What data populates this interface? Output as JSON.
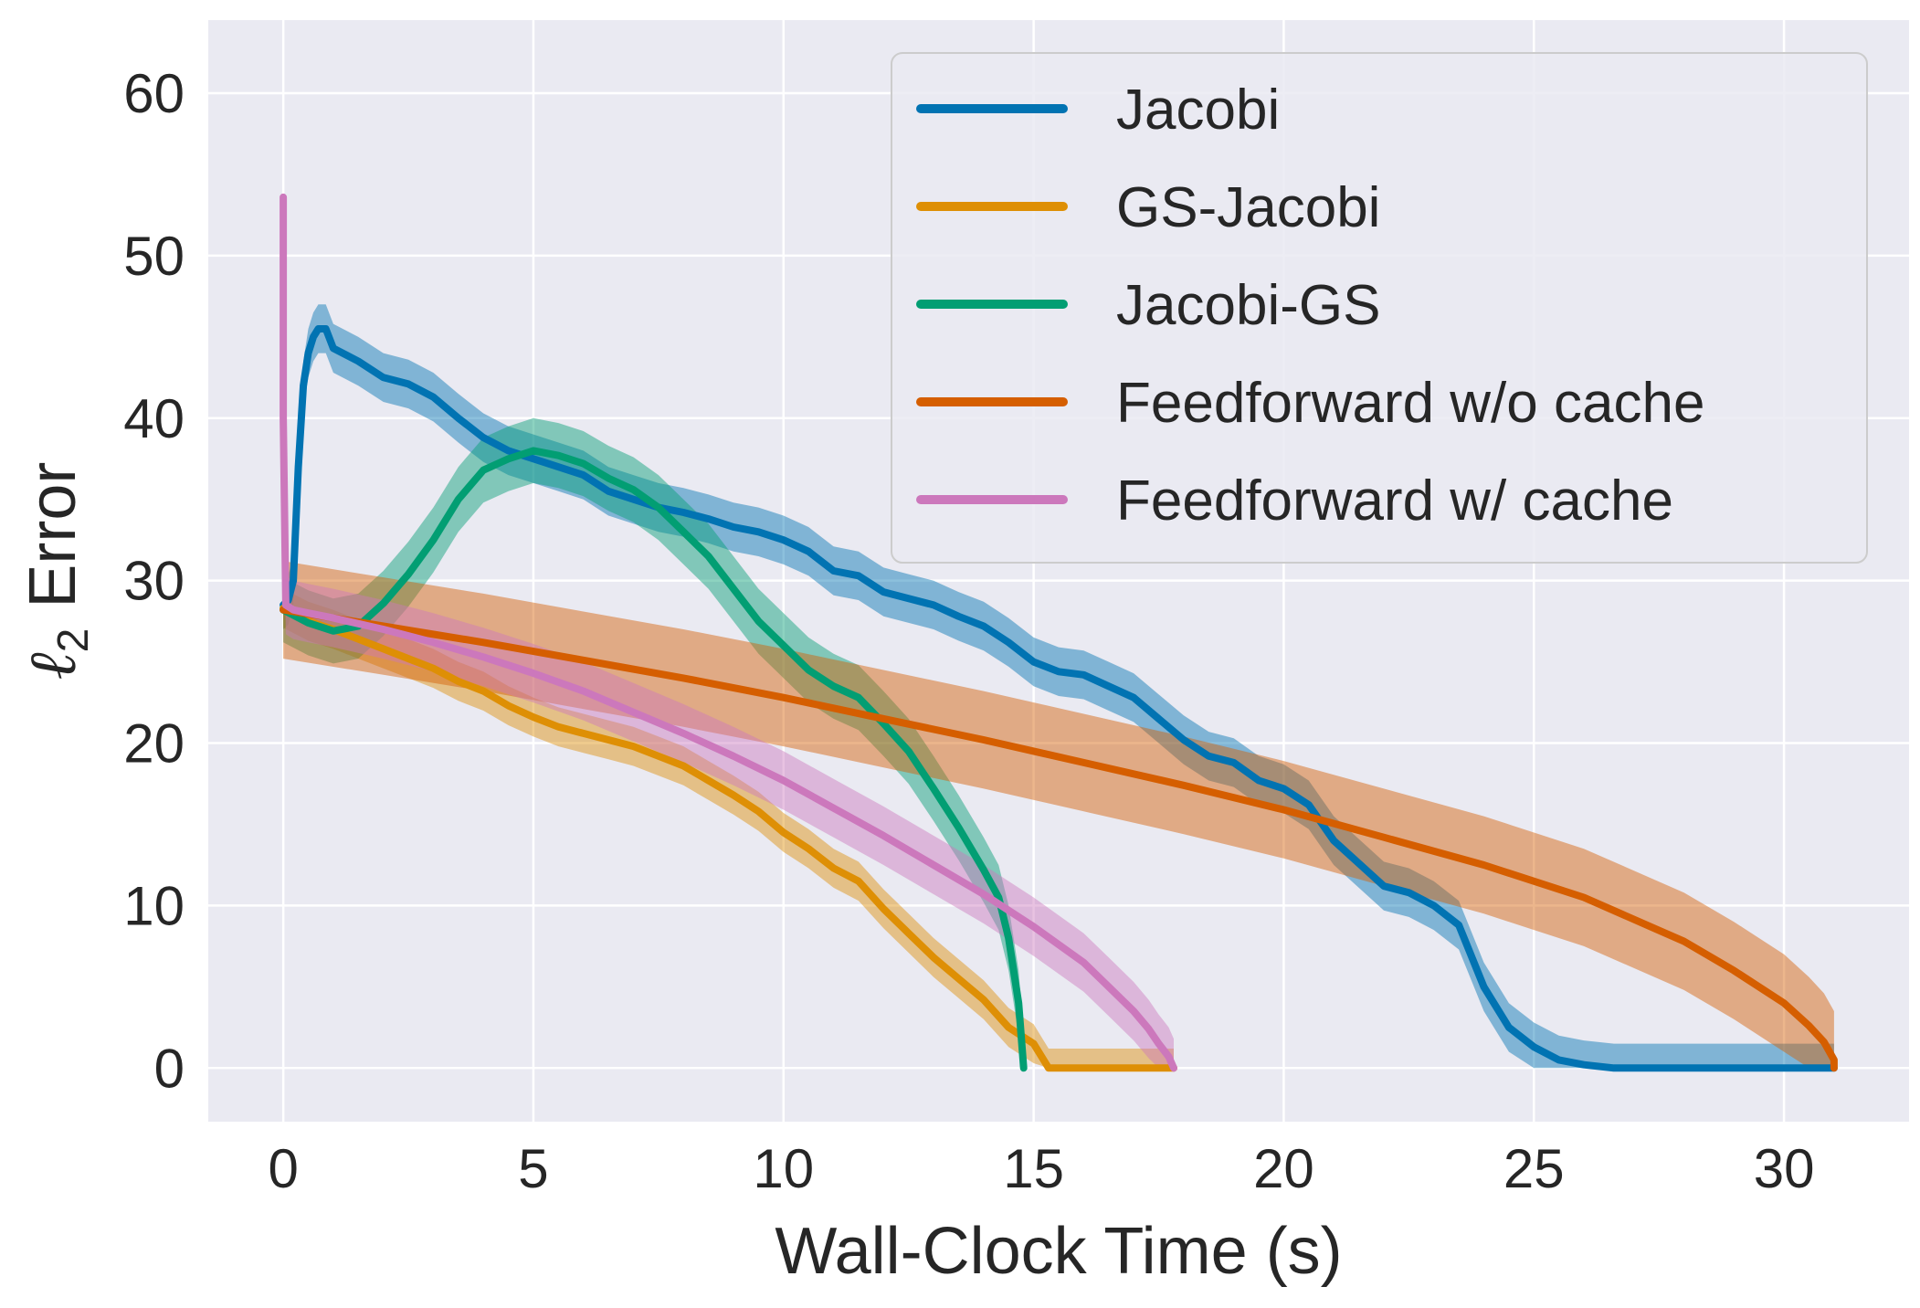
{
  "chart_data": {
    "type": "line",
    "title": "",
    "xlabel": "Wall-Clock Time (s)",
    "ylabel_symbol": "ℓ",
    "ylabel_subscript": "2",
    "ylabel_rest": "Error",
    "xlim": [
      -1.5,
      32.5
    ],
    "ylim": [
      -3.3,
      64.5
    ],
    "xticks": [
      0,
      5,
      10,
      15,
      20,
      25,
      30
    ],
    "yticks": [
      0,
      10,
      20,
      30,
      40,
      50,
      60
    ],
    "grid": true,
    "legend_position": "top-right",
    "series": [
      {
        "name": "Jacobi",
        "color": "#0173b2",
        "band": 1.5,
        "x": [
          0,
          0.1,
          0.2,
          0.3,
          0.4,
          0.5,
          0.6,
          0.7,
          0.85,
          1.0,
          1.5,
          2,
          2.5,
          3,
          3.5,
          4,
          4.5,
          5,
          5.5,
          6,
          6.5,
          7,
          7.5,
          8,
          8.5,
          9,
          9.5,
          10,
          10.5,
          11,
          11.5,
          12,
          12.5,
          13,
          13.5,
          14,
          14.5,
          15,
          15.5,
          16,
          16.5,
          17,
          17.5,
          18,
          18.5,
          19,
          19.5,
          20,
          20.5,
          21,
          21.5,
          22,
          22.5,
          23,
          23.5,
          24,
          24.5,
          25,
          25.5,
          26,
          26.6,
          27,
          28,
          29,
          30,
          31
        ],
        "y": [
          28.5,
          28.8,
          30,
          37,
          42,
          44,
          45,
          45.5,
          45.5,
          44.3,
          43.5,
          42.5,
          42.1,
          41.3,
          40,
          38.8,
          38,
          37.5,
          37,
          36.5,
          35.5,
          35,
          34.5,
          34.2,
          33.8,
          33.3,
          33,
          32.5,
          31.8,
          30.6,
          30.3,
          29.3,
          28.9,
          28.5,
          27.8,
          27.2,
          26.2,
          25,
          24.4,
          24.2,
          23.5,
          22.8,
          21.5,
          20.2,
          19.2,
          18.8,
          17.7,
          17.2,
          16.2,
          14,
          12.6,
          11.2,
          10.8,
          10,
          8.8,
          5,
          2.5,
          1.3,
          0.5,
          0.2,
          0,
          0,
          0,
          0,
          0,
          0
        ]
      },
      {
        "name": "GS-Jacobi",
        "color": "#de8f05",
        "band": 1.2,
        "x": [
          0,
          0.5,
          1,
          1.5,
          2,
          2.5,
          3,
          3.5,
          4,
          4.5,
          5,
          5.5,
          6,
          6.5,
          7,
          7.5,
          8,
          8.5,
          9,
          9.5,
          10,
          10.5,
          11,
          11.5,
          12,
          12.5,
          13,
          13.5,
          14,
          14.5,
          15,
          15.3,
          16,
          17,
          17.8
        ],
        "y": [
          28.3,
          27.5,
          27,
          26.4,
          25.8,
          25.2,
          24.6,
          23.8,
          23.2,
          22.3,
          21.6,
          21,
          20.6,
          20.2,
          19.8,
          19.2,
          18.6,
          17.7,
          16.8,
          15.8,
          14.5,
          13.5,
          12.3,
          11.5,
          9.8,
          8.3,
          6.8,
          5.5,
          4.2,
          2.5,
          1.5,
          0,
          0,
          0,
          0
        ]
      },
      {
        "name": "Jacobi-GS",
        "color": "#029e73",
        "band": 2.0,
        "x": [
          0,
          0.5,
          1,
          1.5,
          2,
          2.5,
          3,
          3.5,
          4,
          4.5,
          5,
          5.5,
          6,
          6.5,
          7,
          7.5,
          8,
          8.5,
          9,
          9.5,
          10,
          10.5,
          11,
          11.5,
          12,
          12.5,
          13,
          13.5,
          14,
          14.3,
          14.5,
          14.7,
          14.8
        ],
        "y": [
          28.2,
          27.4,
          26.9,
          27.2,
          28.6,
          30.4,
          32.5,
          35,
          36.8,
          37.5,
          38,
          37.7,
          37.2,
          36.3,
          35.6,
          34.5,
          33,
          31.5,
          29.5,
          27.5,
          26,
          24.5,
          23.5,
          22.8,
          21.2,
          19.5,
          17.2,
          14.8,
          12.2,
          10.5,
          8,
          4,
          0
        ]
      },
      {
        "name": "Feedforward w/o cache",
        "color": "#d55e00",
        "band": 3.0,
        "x": [
          0,
          2,
          4,
          6,
          8,
          10,
          12,
          14,
          16,
          18,
          20,
          22,
          24,
          26,
          28,
          29,
          30,
          30.5,
          30.8,
          31,
          31
        ],
        "y": [
          28.2,
          27.2,
          26.2,
          25.1,
          24,
          22.8,
          21.5,
          20.2,
          18.8,
          17.4,
          15.9,
          14.2,
          12.5,
          10.5,
          7.8,
          6,
          4,
          2.6,
          1.6,
          0.5,
          0
        ]
      },
      {
        "name": "Feedforward w/ cache",
        "color": "#cc78bc",
        "band": 1.8,
        "x": [
          0,
          0,
          0.05,
          0.2,
          0.5,
          1,
          2,
          3,
          4,
          5,
          6,
          7,
          8,
          9,
          10,
          11,
          12,
          13,
          14,
          15,
          16,
          16.5,
          17,
          17.3,
          17.5,
          17.7,
          17.8
        ],
        "y": [
          53.6,
          40,
          28.5,
          28.2,
          28,
          27.7,
          27,
          26.2,
          25.3,
          24.3,
          23.2,
          21.9,
          20.6,
          19.2,
          17.7,
          16,
          14.3,
          12.5,
          10.7,
          8.7,
          6.5,
          5,
          3.5,
          2.4,
          1.5,
          0.7,
          0
        ]
      }
    ]
  }
}
